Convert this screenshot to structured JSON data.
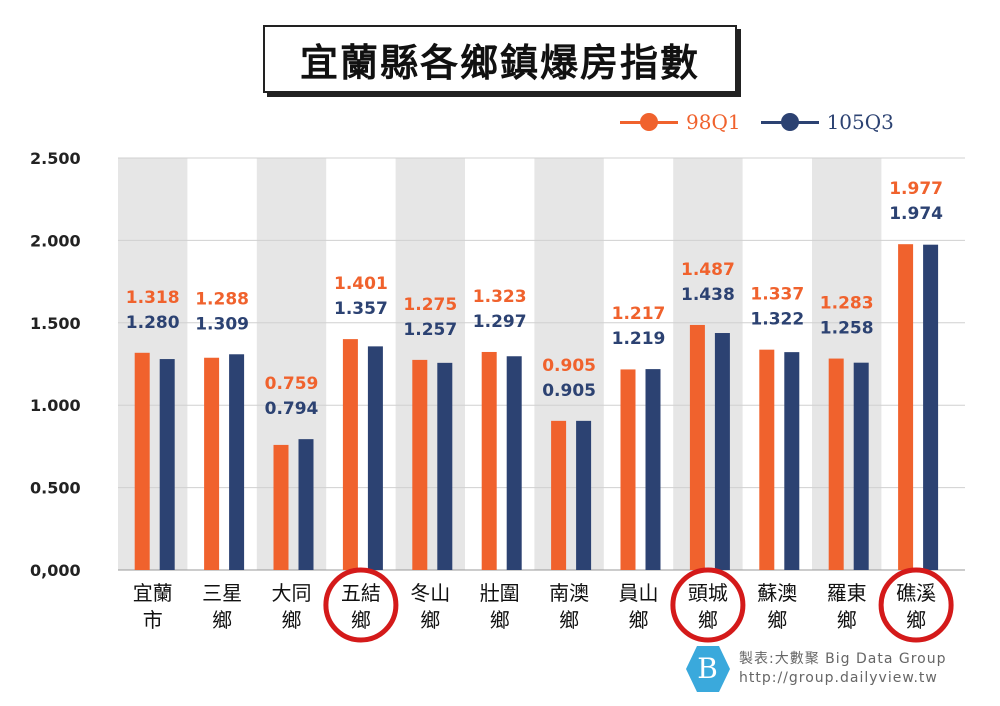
{
  "chart_data": {
    "type": "bar",
    "title": "宜蘭縣各鄉鎮爆房指數",
    "categories": [
      "宜蘭市",
      "三星鄉",
      "大同鄉",
      "五結鄉",
      "冬山鄉",
      "壯圍鄉",
      "南澳鄉",
      "員山鄉",
      "頭城鄉",
      "蘇澳鄉",
      "羅東鄉",
      "礁溪鄉"
    ],
    "highlighted": [
      "五結鄉",
      "頭城鄉",
      "礁溪鄉"
    ],
    "series": [
      {
        "name": "98Q1",
        "color": "#f0622d",
        "values": [
          1.318,
          1.288,
          0.759,
          1.401,
          1.275,
          1.323,
          0.905,
          1.217,
          1.487,
          1.337,
          1.283,
          1.977
        ],
        "labels": [
          "1.318",
          "1.288",
          "0.759",
          "1.401",
          "1.275",
          "1.323",
          "0.905",
          "1.217",
          "1.487",
          "1.337",
          "1.283",
          "1.977"
        ]
      },
      {
        "name": "105Q3",
        "color": "#2c4272",
        "values": [
          1.28,
          1.309,
          0.794,
          1.357,
          1.257,
          1.297,
          0.905,
          1.219,
          1.438,
          1.322,
          1.258,
          1.974
        ],
        "labels": [
          "1.280",
          "1.309",
          "0.794",
          "1.357",
          "1.257",
          "1.297",
          "0.905",
          "1.219",
          "1.438",
          "1.322",
          "1.258",
          "1.974"
        ]
      }
    ],
    "yticks": [
      "0,000",
      "0.500",
      "1.000",
      "1.500",
      "2.000",
      "2.500"
    ],
    "ylim": [
      0,
      2.5
    ],
    "grid": true,
    "legend": "top-right"
  },
  "footer": {
    "line1": "製表:大數聚 Big Data Group",
    "line2": "http://group.dailyview.tw"
  }
}
